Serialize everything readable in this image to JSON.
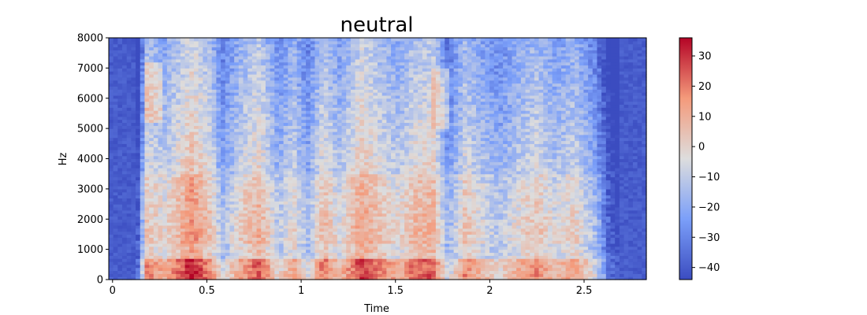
{
  "chart_data": {
    "type": "heatmap",
    "title": "neutral",
    "xlabel": "Time",
    "ylabel": "Hz",
    "xlim": [
      -0.02,
      2.83
    ],
    "ylim": [
      0,
      8000
    ],
    "x_ticks": [
      0,
      0.5,
      1,
      1.5,
      2,
      2.5
    ],
    "x_tick_labels": [
      "0",
      "0.5",
      "1",
      "1.5",
      "2",
      "2.5"
    ],
    "y_ticks": [
      0,
      1000,
      2000,
      3000,
      4000,
      5000,
      6000,
      7000,
      8000
    ],
    "y_tick_labels": [
      "0",
      "1000",
      "2000",
      "3000",
      "4000",
      "5000",
      "6000",
      "7000",
      "8000"
    ],
    "colormap": "coolwarm",
    "colorbar": {
      "range": [
        -44,
        36
      ],
      "ticks": [
        30,
        20,
        10,
        0,
        -10,
        -20,
        -30,
        -40
      ],
      "tick_labels": [
        "30",
        "20",
        "10",
        "0",
        "−10",
        "−20",
        "−30",
        "−40"
      ]
    },
    "grid": false,
    "legend": "none"
  }
}
